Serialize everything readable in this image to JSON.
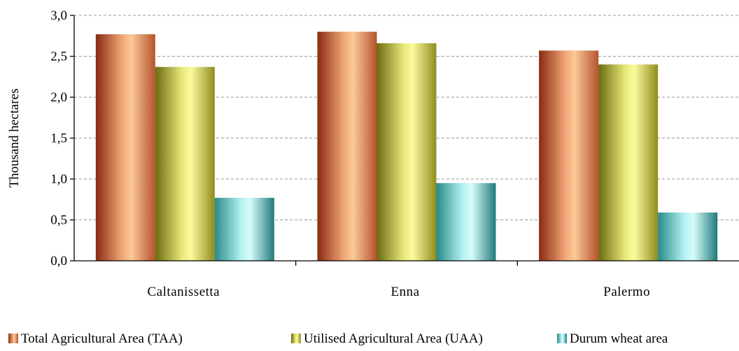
{
  "chart_data": {
    "type": "bar",
    "title": "",
    "xlabel": "",
    "ylabel": "Thousand hectares",
    "ylim": [
      0,
      3.0
    ],
    "yticks": [
      "0,0",
      "0,5",
      "1,0",
      "1,5",
      "2,0",
      "2,5",
      "3,0"
    ],
    "grid": true,
    "legend_position": "bottom",
    "categories": [
      "Caltanissetta",
      "Enna",
      "Palermo"
    ],
    "series": [
      {
        "name": "Total Agricultural Area (TAA)",
        "values": [
          2.77,
          2.8,
          2.57
        ],
        "color": "#e8a37a"
      },
      {
        "name": "Utilised Agricultural Area (UAA)",
        "values": [
          2.37,
          2.66,
          2.4
        ],
        "color": "#d8d86a"
      },
      {
        "name": "Durum wheat area",
        "values": [
          0.77,
          0.95,
          0.59
        ],
        "color": "#7fd6d6"
      }
    ]
  }
}
